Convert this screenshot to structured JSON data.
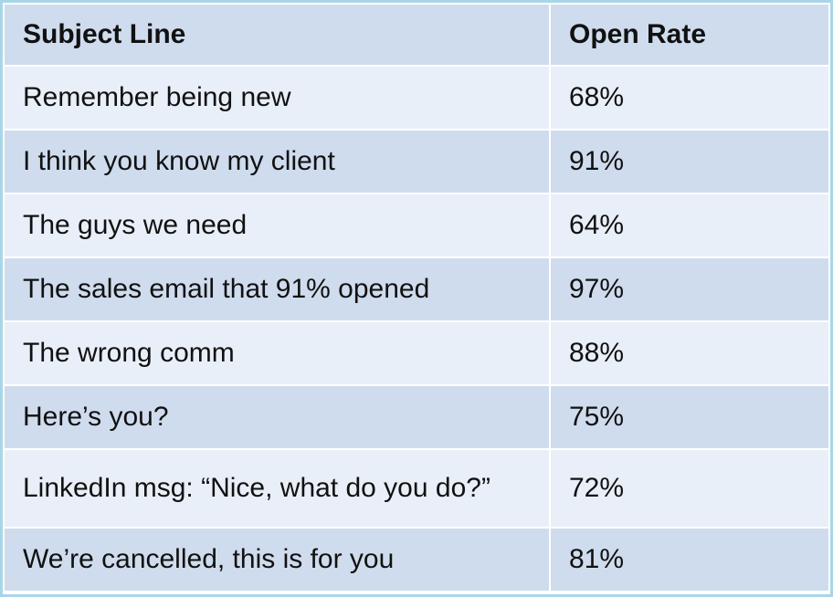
{
  "table": {
    "header": [
      "Subject Line",
      "Open Rate"
    ],
    "rows": [
      [
        "Remember being new",
        "68%"
      ],
      [
        "I think you know my client",
        "91%"
      ],
      [
        "The guys we need",
        "64%"
      ],
      [
        "The sales email that 91% opened",
        "97%"
      ],
      [
        "The wrong comm",
        "88%"
      ],
      [
        "Here’s you?",
        "75%"
      ],
      [
        "LinkedIn msg: “Nice, what do you do?”",
        "72%"
      ],
      [
        "We’re cancelled, this is for you",
        "81%"
      ]
    ]
  }
}
